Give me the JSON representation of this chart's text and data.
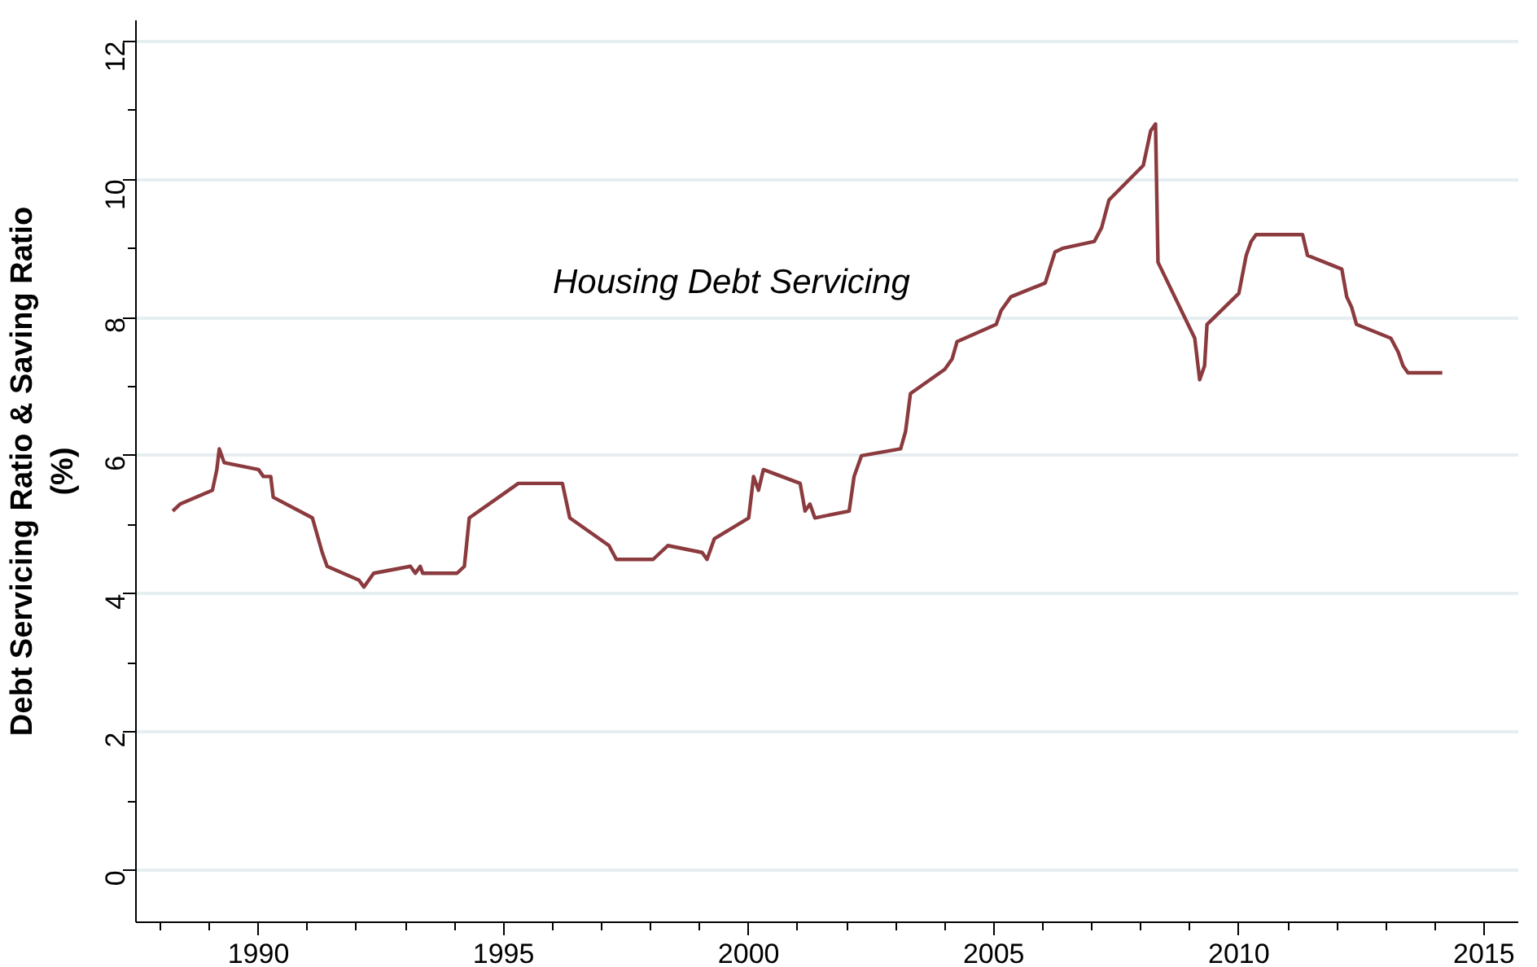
{
  "chart_data": {
    "type": "line",
    "ylabel": "Debt Servicing Ratio & Saving Ratio\n(%)",
    "x": [
      1988.25,
      1988.4,
      1989.06,
      1989.15,
      1989.2,
      1989.3,
      1990.0,
      1990.1,
      1990.25,
      1990.3,
      1991.1,
      1991.3,
      1991.4,
      1992.05,
      1992.15,
      1992.35,
      1993.1,
      1993.2,
      1993.3,
      1993.35,
      1994.05,
      1994.2,
      1994.3,
      1995.1,
      1995.3,
      1996.2,
      1996.35,
      1997.15,
      1997.3,
      1998.05,
      1998.2,
      1998.35,
      1999.05,
      1999.15,
      1999.3,
      2000.0,
      2000.1,
      2000.2,
      2000.3,
      2001.05,
      2001.15,
      2001.25,
      2001.35,
      2002.05,
      2002.15,
      2002.3,
      2003.1,
      2003.2,
      2003.3,
      2004.0,
      2004.15,
      2004.25,
      2005.05,
      2005.15,
      2005.35,
      2006.05,
      2006.25,
      2006.4,
      2007.05,
      2007.2,
      2007.35,
      2008.05,
      2008.2,
      2008.3,
      2008.35,
      2009.1,
      2009.2,
      2009.3,
      2009.35,
      2010.0,
      2010.15,
      2010.25,
      2010.35,
      2011.3,
      2011.4,
      2012.1,
      2012.2,
      2012.3,
      2012.4,
      2013.1,
      2013.25,
      2013.35,
      2013.45,
      2014.15
    ],
    "series": [
      {
        "color": "#8b3a3e",
        "values": [
          5.2,
          5.3,
          5.5,
          5.8,
          6.1,
          5.9,
          5.8,
          5.7,
          5.7,
          5.4,
          5.1,
          4.6,
          4.4,
          4.2,
          4.1,
          4.3,
          4.4,
          4.3,
          4.4,
          4.3,
          4.3,
          4.4,
          5.1,
          5.5,
          5.6,
          5.6,
          5.1,
          4.7,
          4.5,
          4.5,
          4.6,
          4.7,
          4.6,
          4.5,
          4.8,
          5.1,
          5.7,
          5.5,
          5.8,
          5.6,
          5.2,
          5.3,
          5.1,
          5.2,
          5.7,
          6.0,
          6.1,
          6.35,
          6.9,
          7.25,
          7.4,
          7.65,
          7.9,
          8.1,
          8.3,
          8.5,
          8.95,
          9.0,
          9.1,
          9.3,
          9.7,
          10.2,
          10.7,
          10.8,
          8.8,
          7.7,
          7.1,
          7.3,
          7.9,
          8.35,
          8.9,
          9.1,
          9.2,
          9.2,
          8.9,
          8.7,
          8.3,
          8.15,
          7.9,
          7.7,
          7.5,
          7.3,
          7.2,
          7.2
        ]
      }
    ],
    "annotations": [
      "Housing Debt Servicing"
    ],
    "xlim": [
      1987.5,
      2015.7
    ],
    "ylim": [
      -0.75,
      12.3
    ],
    "xticks": [
      {
        "value": 1988,
        "label": null
      },
      {
        "value": 1989,
        "label": null
      },
      1990,
      {
        "value": 1991,
        "label": null
      },
      {
        "value": 1992,
        "label": null
      },
      {
        "value": 1993,
        "label": null
      },
      {
        "value": 1994,
        "label": null
      },
      1995,
      {
        "value": 1996,
        "label": null
      },
      {
        "value": 1997,
        "label": null
      },
      {
        "value": 1998,
        "label": null
      },
      {
        "value": 1999,
        "label": null
      },
      2000,
      {
        "value": 2001,
        "label": null
      },
      {
        "value": 2002,
        "label": null
      },
      {
        "value": 2003,
        "label": null
      },
      {
        "value": 2004,
        "label": null
      },
      2005,
      {
        "value": 2006,
        "label": null
      },
      {
        "value": 2007,
        "label": null
      },
      {
        "value": 2008,
        "label": null
      },
      {
        "value": 2009,
        "label": null
      },
      2010,
      {
        "value": 2011,
        "label": null
      },
      {
        "value": 2012,
        "label": null
      },
      {
        "value": 2013,
        "label": null
      },
      {
        "value": 2014,
        "label": null
      },
      2015
    ],
    "yticks": [
      0,
      {
        "value": 1,
        "label": null
      },
      2,
      {
        "value": 3,
        "label": null
      },
      4,
      {
        "value": 5,
        "label": null
      },
      6,
      {
        "value": 7,
        "label": null
      },
      8,
      {
        "value": 9,
        "label": null
      },
      10,
      {
        "value": 11,
        "label": null
      },
      12
    ],
    "grid": "y",
    "marker": "none",
    "line_style": "solid"
  }
}
